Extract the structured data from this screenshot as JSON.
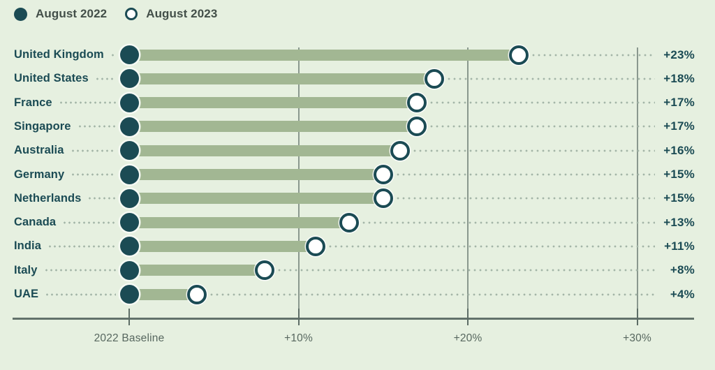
{
  "chart_data": {
    "type": "bar",
    "variant": "dumbbell",
    "title": "",
    "categories": [
      "United Kingdom",
      "United States",
      "France",
      "Singapore",
      "Australia",
      "Germany",
      "Netherlands",
      "Canada",
      "India",
      "Italy",
      "UAE"
    ],
    "series": [
      {
        "name": "August 2022",
        "marker": "filled-circle",
        "values": [
          0,
          0,
          0,
          0,
          0,
          0,
          0,
          0,
          0,
          0,
          0
        ]
      },
      {
        "name": "August 2023",
        "marker": "open-circle",
        "values": [
          23,
          18,
          17,
          17,
          16,
          15,
          15,
          13,
          11,
          8,
          4
        ]
      }
    ],
    "value_labels": [
      "+23%",
      "+18%",
      "+17%",
      "+17%",
      "+16%",
      "+15%",
      "+15%",
      "+13%",
      "+11%",
      "+8%",
      "+4%"
    ],
    "xlabel": "",
    "ylabel": "",
    "x_axis": {
      "xlim": [
        -7,
        34
      ],
      "unit": "percent",
      "ticks": [
        {
          "value": 0,
          "label": "2022 Baseline"
        },
        {
          "value": 10,
          "label": "+10%"
        },
        {
          "value": 20,
          "label": "+20%"
        },
        {
          "value": 30,
          "label": "+30%"
        }
      ],
      "gridline_values": [
        10,
        20,
        30
      ]
    },
    "legend_position": "top-left",
    "grid": "vertical",
    "colors": {
      "background": "#e6f0e0",
      "bar": "#a2b793",
      "accent_teal": "#1b4b54",
      "gridline": "#8a988e",
      "axis": "#62726b",
      "axis_text": "#57675f",
      "legend_text": "#434f49",
      "leader_dots": "#a3b5a7"
    }
  }
}
